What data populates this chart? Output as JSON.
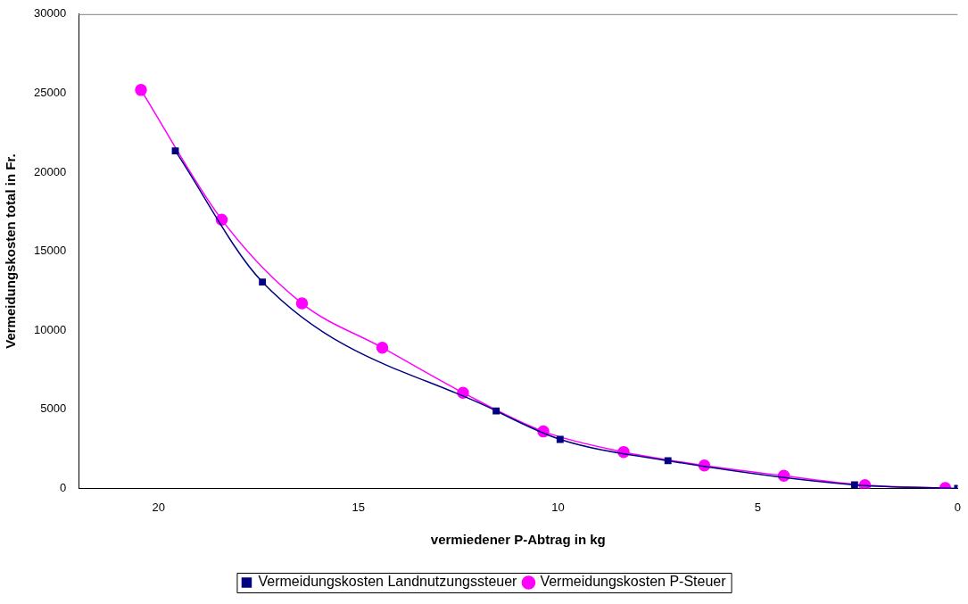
{
  "chart_data": {
    "type": "line",
    "xlabel": "vermiedener P-Abtrag in kg",
    "ylabel": "Vermeidungskosten total in Fr.",
    "xlim": [
      22,
      0
    ],
    "xticks": [
      20,
      15,
      10,
      5,
      0
    ],
    "ylim": [
      0,
      30000
    ],
    "yticks": [
      0,
      5000,
      10000,
      15000,
      20000,
      25000,
      30000
    ],
    "grid": false,
    "legend": "bottom",
    "series": [
      {
        "name": "Vermeidungskosten Landnutzungssteuer",
        "color": "#000080",
        "marker": "square",
        "x": [
          19.58,
          17.4,
          11.55,
          9.95,
          7.25,
          2.58,
          0
        ],
        "values": [
          21350,
          13050,
          4900,
          3100,
          1750,
          220,
          0
        ]
      },
      {
        "name": "Vermeidungskosten P-Steuer",
        "color": "#ff00ff",
        "marker": "circle",
        "x": [
          20.44,
          18.42,
          16.41,
          14.4,
          12.38,
          10.37,
          8.36,
          6.34,
          4.35,
          2.32,
          0.31
        ],
        "values": [
          25200,
          17000,
          11700,
          8900,
          6050,
          3600,
          2300,
          1450,
          800,
          200,
          20
        ]
      }
    ]
  }
}
